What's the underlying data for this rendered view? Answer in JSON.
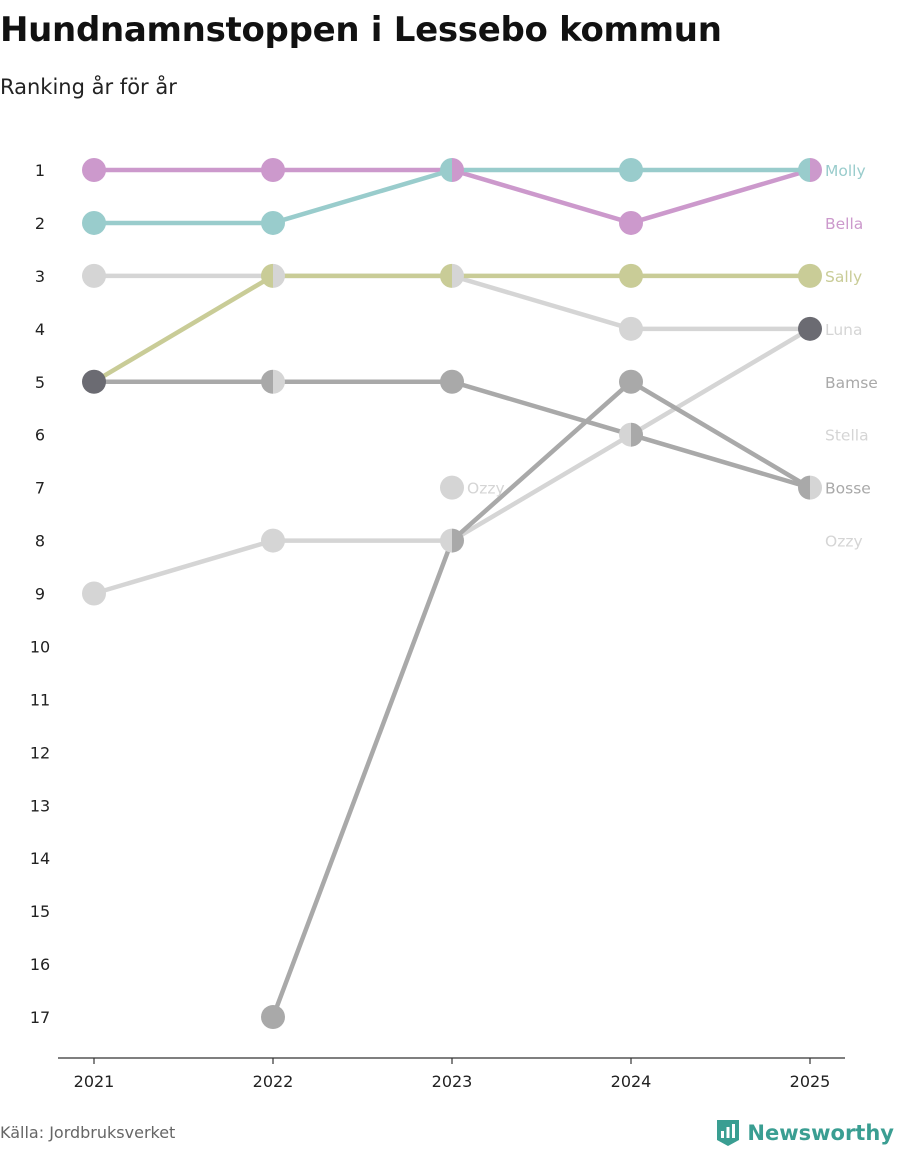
{
  "chart_data": {
    "type": "line",
    "title": "Hundnamnstoppen i Lessebo kommun",
    "subtitle": "Ranking år för år",
    "source": "Källa: Jordbruksverket",
    "brand": "Newsworthy",
    "x": [
      "2021",
      "2022",
      "2023",
      "2024",
      "2025"
    ],
    "y_ticks": [
      "1",
      "2",
      "3",
      "4",
      "5",
      "6",
      "7",
      "8",
      "9",
      "10",
      "11",
      "12",
      "13",
      "14",
      "15",
      "16",
      "17"
    ],
    "ylim": [
      1,
      17
    ],
    "y_inverted": true,
    "legend_position": "right",
    "series": [
      {
        "name": "Ozzy",
        "color": "#d5d5d5",
        "values": [
          null,
          null,
          7,
          null,
          null
        ]
      },
      {
        "name": "Stella",
        "color": "#d5d5d5",
        "values": [
          9,
          8,
          8,
          6,
          4
        ]
      },
      {
        "name": "Bamse",
        "color": "#a9a9a9",
        "values": [
          null,
          17,
          8,
          5,
          7
        ]
      },
      {
        "name": "Bosse",
        "color": "#a9a9a9",
        "values": [
          5,
          5,
          5,
          6,
          7
        ]
      },
      {
        "name": "Luna",
        "color": "#d5d5d5",
        "values": [
          3,
          3,
          3,
          4,
          4
        ]
      },
      {
        "name": "Sally",
        "color": "#c9cc97",
        "values": [
          5,
          3,
          3,
          3,
          3
        ]
      },
      {
        "name": "Bella",
        "color": "#cc99cc",
        "values": [
          1,
          1,
          1,
          2,
          1
        ]
      },
      {
        "name": "Molly",
        "color": "#99cccc",
        "values": [
          2,
          2,
          1,
          1,
          1
        ]
      }
    ],
    "end_labels": [
      {
        "text": "Molly",
        "rank": 1,
        "color": "#99cccc"
      },
      {
        "text": "Bella",
        "rank": 2,
        "color": "#cc99cc"
      },
      {
        "text": "Sally",
        "rank": 3,
        "color": "#c9cc97"
      },
      {
        "text": "Luna",
        "rank": 4,
        "color": "#d5d5d5"
      },
      {
        "text": "Bamse",
        "rank": 5,
        "color": "#a9a9a9"
      },
      {
        "text": "Stella",
        "rank": 6,
        "color": "#d5d5d5"
      },
      {
        "text": "Bosse",
        "rank": 7,
        "color": "#a9a9a9"
      },
      {
        "text": "Ozzy",
        "rank": 8,
        "color": "#d5d5d5"
      }
    ],
    "inline_labels": [
      {
        "text": "Ozzy",
        "year_index": 2,
        "rank": 7,
        "color": "#d5d5d5"
      }
    ],
    "highlight_color": "#6b6b72",
    "highlight_points": [
      {
        "year_index": 0,
        "rank": 5
      },
      {
        "year_index": 4,
        "rank": 4
      }
    ],
    "split_points": [
      {
        "year_index": 1,
        "rank": 3,
        "left": "#c9cc97",
        "right": "#d5d5d5"
      },
      {
        "year_index": 1,
        "rank": 5,
        "left": "#a9a9a9",
        "right": "#d5d5d5"
      },
      {
        "year_index": 2,
        "rank": 1,
        "left": "#99cccc",
        "right": "#cc99cc"
      },
      {
        "year_index": 2,
        "rank": 3,
        "left": "#c9cc97",
        "right": "#d5d5d5"
      },
      {
        "year_index": 2,
        "rank": 8,
        "left": "#d5d5d5",
        "right": "#a9a9a9"
      },
      {
        "year_index": 3,
        "rank": 6,
        "left": "#d5d5d5",
        "right": "#a9a9a9"
      },
      {
        "year_index": 4,
        "rank": 1,
        "left": "#99cccc",
        "right": "#cc99cc"
      },
      {
        "year_index": 4,
        "rank": 7,
        "left": "#a9a9a9",
        "right": "#d5d5d5"
      }
    ]
  }
}
